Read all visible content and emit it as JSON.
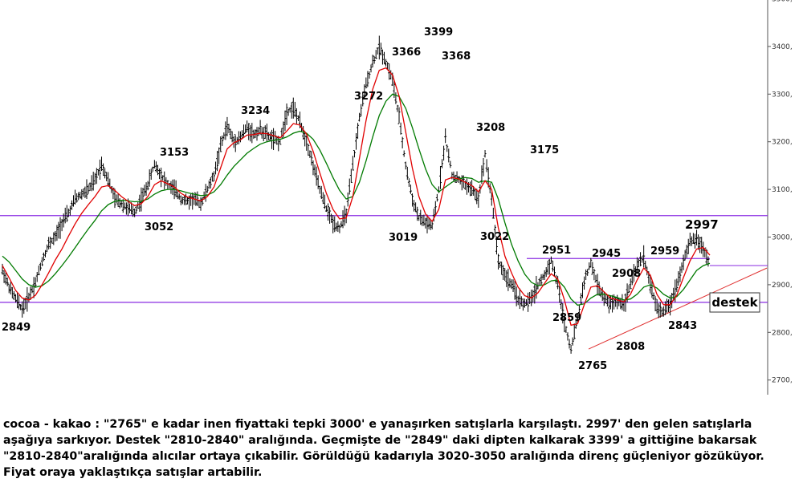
{
  "chart_data": {
    "type": "line",
    "title": "",
    "xlabel": "",
    "ylabel": "",
    "ylim": [
      2660,
      3510
    ],
    "yticks": [
      2700,
      2800,
      2900,
      3000,
      3100,
      3200,
      3300,
      3400,
      3500
    ],
    "ytick_labels": [
      "2700,",
      "2800,",
      "2900,",
      "3000,",
      "3100,",
      "3200,",
      "3300,",
      "3400,",
      "3500,"
    ],
    "grid": false,
    "colors": {
      "price": "#000000",
      "fast_ma": "#e00000",
      "slow_ma": "#007a00",
      "horizontal_lines": "#8a2be2",
      "trendline": "#e03030"
    },
    "series": [
      {
        "role": "price",
        "values": [
          2930,
          2895,
          2870,
          2849,
          2875,
          2905,
          2950,
          2985,
          3000,
          3030,
          3050,
          3080,
          3090,
          3100,
          3120,
          3153,
          3120,
          3080,
          3070,
          3060,
          3052,
          3080,
          3110,
          3153,
          3130,
          3110,
          3100,
          3080,
          3075,
          3080,
          3070,
          3100,
          3130,
          3190,
          3234,
          3200,
          3210,
          3230,
          3215,
          3225,
          3215,
          3205,
          3200,
          3262,
          3272,
          3240,
          3200,
          3150,
          3100,
          3060,
          3030,
          3019,
          3050,
          3150,
          3250,
          3320,
          3366,
          3399,
          3368,
          3330,
          3250,
          3150,
          3080,
          3040,
          3030,
          3022,
          3100,
          3208,
          3130,
          3120,
          3110,
          3100,
          3080,
          3175,
          3080,
          2950,
          2920,
          2900,
          2870,
          2859,
          2870,
          2900,
          2920,
          2951,
          2900,
          2820,
          2765,
          2830,
          2908,
          2945,
          2900,
          2870,
          2860,
          2865,
          2860,
          2900,
          2940,
          2959,
          2900,
          2850,
          2843,
          2860,
          2900,
          2950,
          2990,
          2997,
          2975,
          2945
        ]
      },
      {
        "role": "fast_ma",
        "values": [
          2940,
          2915,
          2888,
          2872,
          2868,
          2878,
          2900,
          2925,
          2952,
          2975,
          3002,
          3028,
          3050,
          3068,
          3085,
          3105,
          3108,
          3098,
          3085,
          3075,
          3066,
          3070,
          3085,
          3110,
          3118,
          3112,
          3105,
          3092,
          3084,
          3080,
          3076,
          3085,
          3105,
          3145,
          3185,
          3198,
          3204,
          3214,
          3215,
          3218,
          3217,
          3213,
          3208,
          3222,
          3238,
          3235,
          3216,
          3180,
          3135,
          3092,
          3058,
          3038,
          3040,
          3085,
          3165,
          3245,
          3310,
          3350,
          3355,
          3340,
          3296,
          3220,
          3145,
          3085,
          3048,
          3033,
          3058,
          3120,
          3125,
          3122,
          3115,
          3108,
          3095,
          3118,
          3100,
          3020,
          2960,
          2925,
          2895,
          2877,
          2872,
          2883,
          2903,
          2923,
          2912,
          2868,
          2815,
          2818,
          2858,
          2895,
          2898,
          2885,
          2872,
          2868,
          2864,
          2880,
          2910,
          2935,
          2920,
          2880,
          2858,
          2858,
          2878,
          2915,
          2950,
          2975,
          2978,
          2962
        ]
      },
      {
        "role": "slow_ma",
        "values": [
          2960,
          2948,
          2930,
          2912,
          2900,
          2895,
          2898,
          2908,
          2923,
          2940,
          2958,
          2978,
          2998,
          3017,
          3035,
          3055,
          3068,
          3075,
          3077,
          3076,
          3074,
          3075,
          3080,
          3090,
          3097,
          3100,
          3100,
          3097,
          3093,
          3090,
          3087,
          3088,
          3095,
          3110,
          3130,
          3148,
          3162,
          3176,
          3186,
          3195,
          3200,
          3203,
          3205,
          3210,
          3218,
          3222,
          3218,
          3205,
          3183,
          3155,
          3125,
          3098,
          3080,
          3085,
          3115,
          3160,
          3210,
          3255,
          3285,
          3300,
          3295,
          3270,
          3230,
          3185,
          3143,
          3110,
          3095,
          3105,
          3115,
          3122,
          3125,
          3123,
          3115,
          3118,
          3115,
          3080,
          3030,
          2985,
          2950,
          2922,
          2905,
          2898,
          2900,
          2908,
          2910,
          2895,
          2870,
          2857,
          2860,
          2872,
          2880,
          2880,
          2877,
          2873,
          2868,
          2870,
          2880,
          2895,
          2900,
          2893,
          2880,
          2872,
          2875,
          2890,
          2910,
          2930,
          2940,
          2945
        ]
      }
    ],
    "horizontal_lines": [
      3045,
      2863,
      2955
    ],
    "trendline": {
      "from": 2765,
      "to": 2935
    },
    "annotations": [
      {
        "text": "2849",
        "y": 2849
      },
      {
        "text": "3153",
        "y": 3153
      },
      {
        "text": "3052",
        "y": 3052
      },
      {
        "text": "3234",
        "y": 3234
      },
      {
        "text": "3272",
        "y": 3272
      },
      {
        "text": "3019",
        "y": 3019
      },
      {
        "text": "3366",
        "y": 3366
      },
      {
        "text": "3399",
        "y": 3399
      },
      {
        "text": "3368",
        "y": 3368
      },
      {
        "text": "3208",
        "y": 3208
      },
      {
        "text": "3022",
        "y": 3022
      },
      {
        "text": "3175",
        "y": 3175
      },
      {
        "text": "2951",
        "y": 2951
      },
      {
        "text": "2859",
        "y": 2859
      },
      {
        "text": "2945",
        "y": 2945
      },
      {
        "text": "2908",
        "y": 2908
      },
      {
        "text": "2765",
        "y": 2765
      },
      {
        "text": "2808",
        "y": 2808
      },
      {
        "text": "2959",
        "y": 2959
      },
      {
        "text": "2843",
        "y": 2843
      },
      {
        "text": "2997",
        "y": 2997
      }
    ],
    "support_label": "destek"
  },
  "caption": "cocoa - kakao : \"2765\" e kadar inen fiyattaki tepki 3000' e yanaşırken satışlarla karşılaştı. 2997' den gelen satışlarla aşağıya sarkıyor. Destek \"2810-2840\" aralığında. Geçmişte de \"2849\" daki dipten kalkarak 3399' a gittiğine bakarsak \"2810-2840\"aralığında alıcılar ortaya çıkabilir. Görüldüğü kadarıyla 3020-3050 aralığında direnç güçleniyor gözüküyor. Fiyat oraya yaklaştıkça satışlar artabilir."
}
